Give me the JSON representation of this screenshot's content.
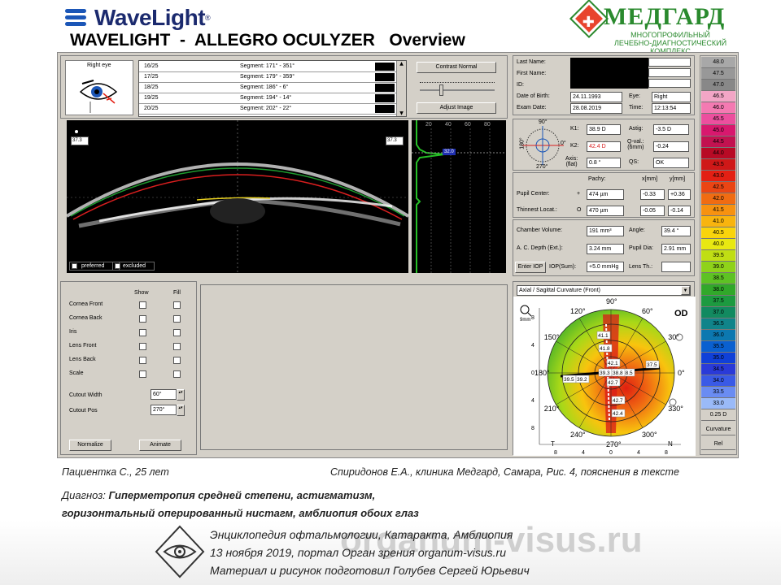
{
  "brand": {
    "name": "WaveLight",
    "reg": "®",
    "title": "WAVELIGHT  -  ALLEGRO OCULYZER   Overview"
  },
  "clinic": {
    "name": "МЕДГАРД",
    "sub1": "МНОГОПРОФИЛЬНЫЙ",
    "sub2": "ЛЕЧЕБНО-ДИАГНОСТИЧЕСКИЙ КОМПЛЕКС",
    "cross": "✚"
  },
  "eye_box": {
    "label": "Right eye"
  },
  "segments": [
    {
      "id": "16/25",
      "seg": "Segment: 171° - 351°"
    },
    {
      "id": "17/25",
      "seg": "Segment: 179° - 359°"
    },
    {
      "id": "18/25",
      "seg": "Segment: 186° - 6°"
    },
    {
      "id": "19/25",
      "seg": "Segment: 194° - 14°"
    },
    {
      "id": "20/25",
      "seg": "Segment: 202° - 22°"
    }
  ],
  "contrast_label": "Contrast Normal",
  "adjust_label": "Adjust Image",
  "scheimpflug": {
    "left_val": "37.3",
    "right_val": "37.3",
    "preferred": "preferred",
    "excluded": "excluded"
  },
  "density": {
    "ticks": [
      "20",
      "40",
      "60",
      "80"
    ],
    "marker": "32.0"
  },
  "patient": {
    "last_name": "Last Name:",
    "first_name": "First Name:",
    "id": "ID:",
    "dob_label": "Date of Birth:",
    "dob": "24.11.1993",
    "eye_label": "Eye:",
    "eye": "Right",
    "exam_label": "Exam Date:",
    "exam": "28.08.2019",
    "time_label": "Time:",
    "time": "12:13:54"
  },
  "kvals": {
    "ang90": "90°",
    "ang180": "180°",
    "ang0": "0°",
    "ang270": "270°",
    "k1_label": "K1:",
    "k1": "38.9 D",
    "k2_label": "K2:",
    "k2": "42.4 D",
    "axis_label": "Axis:",
    "axis_sub": "(flat)",
    "axis": "0.8 °",
    "astig_label": "Astig:",
    "astig": "-3.5 D",
    "qval_label": "Q-val.:",
    "qval_sub": "(6mm)",
    "qval": "-0.24",
    "qs_label": "QS:",
    "qs": "OK"
  },
  "pachy": {
    "pachy_h": "Pachy:",
    "x_h": "x[mm]",
    "y_h": "y[mm]",
    "pupil_label": "Pupil Center:",
    "pupil_sym": "+",
    "pupil_pachy": "474 µm",
    "pupil_x": "-0.33",
    "pupil_y": "+0.36",
    "thin_label": "Thinnest Locat.:",
    "thin_sym": "O",
    "thin_pachy": "470 µm",
    "thin_x": "-0.05",
    "thin_y": "-0.14"
  },
  "chamber": {
    "vol_label": "Chamber Volume:",
    "vol": "191 mm³",
    "angle_label": "Angle:",
    "angle": "39.4 °",
    "acd_label": "A. C. Depth (Ext.):",
    "acd": "3.24 mm",
    "pupil_label": "Pupil Dia:",
    "pupil": "2.91 mm",
    "iop_btn": "Enter IOP",
    "iop_label": "IOP(Sum):",
    "iop": "+5.0 mmHg",
    "lens_label": "Lens Th.:",
    "lens": ""
  },
  "layers": {
    "show": "Show",
    "fill": "Fill",
    "items": [
      "Cornea Front",
      "Cornea Back",
      "Iris",
      "Lens Front",
      "Lens Back",
      "Scale"
    ],
    "cutout_w_label": "Cutout Width",
    "cutout_w": "60°",
    "cutout_p_label": "Cutout Pos",
    "cutout_p": "270°",
    "normalize": "Normalize",
    "animate": "Animate"
  },
  "topo": {
    "dropdown": "Axial / Sagittal Curvature (Front)",
    "od": "OD",
    "scale_label": "9mm",
    "y_ticks": [
      "8",
      "4",
      "0",
      "4",
      "8"
    ],
    "x_ticks": [
      "8",
      "4",
      "0",
      "4",
      "8"
    ],
    "t": "T",
    "n": "N",
    "angles": [
      "90°",
      "60°",
      "30°",
      "0°",
      "330°",
      "300°",
      "270°",
      "240°",
      "210°",
      "180°",
      "150°",
      "120°"
    ],
    "values": [
      "41.1",
      "41.8",
      "42.1",
      "39.3",
      "38.5",
      "38.8",
      "37.5",
      "39.5",
      "39.2",
      "42.7",
      "42.7",
      "42.4"
    ]
  },
  "colorbar": {
    "values": [
      "48.0",
      "47.5",
      "47.0",
      "46.5",
      "46.0",
      "45.5",
      "45.0",
      "44.5",
      "44.0",
      "43.5",
      "43.0",
      "42.5",
      "42.0",
      "41.5",
      "41.0",
      "40.5",
      "40.0",
      "39.5",
      "39.0",
      "38.5",
      "38.0",
      "37.5",
      "37.0",
      "36.5",
      "36.0",
      "35.5",
      "35.0",
      "34.5",
      "34.0",
      "33.5",
      "33.0"
    ],
    "colors": [
      "#a8a8a8",
      "#989898",
      "#888888",
      "#f2a6c6",
      "#f47ab2",
      "#ec4f9e",
      "#d8186e",
      "#c21250",
      "#b80a25",
      "#cf1818",
      "#e32014",
      "#ea4514",
      "#f06c12",
      "#f79210",
      "#f8b40e",
      "#f9d40c",
      "#e8e812",
      "#c0de14",
      "#8fd21a",
      "#5ec224",
      "#31a82a",
      "#1d9a40",
      "#128a60",
      "#10848a",
      "#0c78b0",
      "#0a60d0",
      "#1040d8",
      "#2a3ad8",
      "#3a5ae6",
      "#6a8cf2",
      "#9abaf8"
    ],
    "step": "0.25 D",
    "curv": "Curvature",
    "rel": "Rel"
  },
  "caption": {
    "patient": "Пациентка С., 25 лет",
    "author": "Спиридонов Е.А., клиника Медгард, Самара, Рис. 4, пояснения в тексте",
    "dx_label": "Диагноз: ",
    "dx1": "Гиперметропия средней степени, астигматизм,",
    "dx2": "горизонтальный оперированный нистагм, амблиопия обоих глаз"
  },
  "credit": {
    "l1": "Энциклопедия офтальмологии, Катаракта, Амблиопия",
    "l2": "13 ноября 2019, портал Орган зрения organum-visus.ru",
    "l3": "Материал и рисунок подготовил Голубев Сергей Юрьевич",
    "wm": "organum-visus.ru"
  }
}
